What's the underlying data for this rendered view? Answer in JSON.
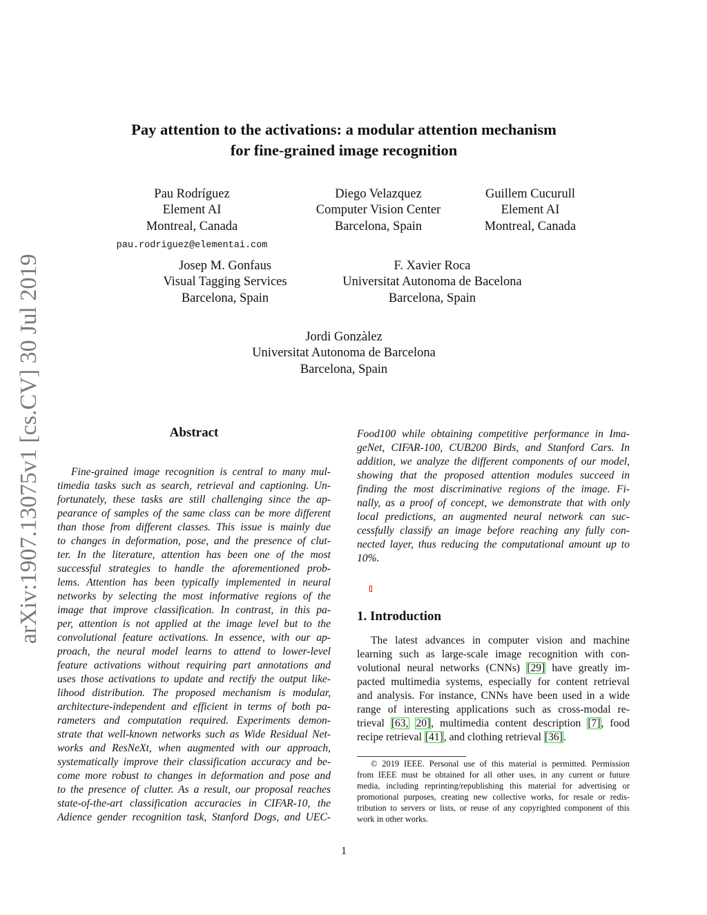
{
  "arxiv_stamp": "arXiv:1907.13075v1  [cs.CV]  30 Jul 2019",
  "title": [
    "Pay attention to the activations: a modular attention mechanism",
    "for fine-grained image recognition"
  ],
  "authors_row1": [
    {
      "name": "Pau Rodríguez",
      "affil": "Element AI",
      "loc": "Montreal, Canada",
      "email": "pau.rodriguez@elementai.com"
    },
    {
      "name": "Diego Velazquez",
      "affil": "Computer Vision Center",
      "loc": "Barcelona, Spain"
    },
    {
      "name": "Guillem Cucurull",
      "affil": "Element AI",
      "loc": "Montreal, Canada"
    }
  ],
  "authors_row2": [
    {
      "name": "Josep M. Gonfaus",
      "affil": "Visual Tagging Services",
      "loc": "Barcelona, Spain"
    },
    {
      "name": "F. Xavier Roca",
      "affil": "Universitat Autonoma de Bacelona",
      "loc": "Barcelona, Spain"
    }
  ],
  "authors_row3": [
    {
      "name": "Jordi Gonzàlez",
      "affil": "Universitat Autonoma de Barcelona",
      "loc": "Barcelona, Spain"
    }
  ],
  "abstract_heading": "Abstract",
  "abstract_left": [
    "Fine-grained image recognition is central to many mul-",
    "timedia tasks such as search, retrieval and captioning. Un-",
    "fortunately, these tasks are still challenging since the ap-",
    "pearance of samples of the same class can be more different",
    "than those from different classes. This issue is mainly due",
    "to changes in deformation, pose, and the presence of clut-",
    "ter. In the literature, attention has been one of the most",
    "successful strategies to handle the aforementioned prob-",
    "lems. Attention has been typically implemented in neural",
    "networks by selecting the most informative regions of the",
    "image that improve classification. In contrast, in this pa-",
    "per, attention is not applied at the image level but to the",
    "convolutional feature activations. In essence, with our ap-",
    "proach, the neural model learns to attend to lower-level",
    "feature activations without requiring part annotations and",
    "uses those activations to update and rectify the output like-",
    "lihood distribution. The proposed mechanism is modular,",
    "architecture-independent and efficient in terms of both pa-",
    "rameters and computation required. Experiments demon-",
    "strate that well-known networks such as Wide Residual Net-",
    "works and ResNeXt, when augmented with our approach,",
    "systematically improve their classification accuracy and be-",
    "come more robust to changes in deformation and pose and",
    "to the presence of clutter. As a result, our proposal reaches",
    "state-of-the-art classification accuracies in CIFAR-10, the",
    "Adience gender recognition task, Stanford Dogs, and UEC-"
  ],
  "abstract_right": [
    "Food100 while obtaining competitive performance in Ima-",
    "geNet, CIFAR-100, CUB200 Birds, and Stanford Cars. In",
    "addition, we analyze the different components of our model,",
    "showing that the proposed attention modules succeed in",
    "finding the most discriminative regions of the image. Fi-",
    "nally, as a proof of concept, we demonstrate that with only",
    "local predictions, an augmented neural network can suc-",
    "cessfully classify an image before reaching any fully con-",
    "nected layer, thus reducing the computational amount up to",
    "10%."
  ],
  "intro_heading": "1. Introduction",
  "intro_lines": [
    [
      {
        "t": "The latest advances in computer vision and machine"
      }
    ],
    [
      {
        "t": "learning such as large-scale image recognition with con-"
      }
    ],
    [
      {
        "t": "volutional neural networks (CNNs) "
      },
      {
        "t": "[29]",
        "cite": true
      },
      {
        "t": " have greatly im-"
      }
    ],
    [
      {
        "t": "pacted multimedia systems, especially for content retrieval"
      }
    ],
    [
      {
        "t": "and analysis. For instance, CNNs have been used in a wide"
      }
    ],
    [
      {
        "t": "range of interesting applications such as cross-modal re-"
      }
    ],
    [
      {
        "t": "trieval "
      },
      {
        "t": "[63,",
        "cite": true
      },
      {
        "t": " "
      },
      {
        "t": "20]",
        "cite": true
      },
      {
        "t": ", multimedia content description "
      },
      {
        "t": "[7]",
        "cite": true
      },
      {
        "t": ", food"
      }
    ],
    [
      {
        "t": "recipe retrieval "
      },
      {
        "t": "[41]",
        "cite": true
      },
      {
        "t": ", and clothing retrieval "
      },
      {
        "t": "[36]",
        "cite": true
      },
      {
        "t": "."
      }
    ]
  ],
  "footnote": [
    "© 2019 IEEE. Personal use of this material is permitted. Permission",
    "from IEEE must be obtained for all other uses, in any current or future",
    "media, including reprinting/republishing this material for advertising or",
    "promotional purposes, creating new collective works, for resale or redis-",
    "tribution to servers or lists, or reuse of any copyrighted component of this",
    "work in other works."
  ],
  "page_number": "1",
  "colors": {
    "citation_box": "#3ad13a",
    "link_marker": "#e02020",
    "stamp": "#7a7a7a"
  }
}
